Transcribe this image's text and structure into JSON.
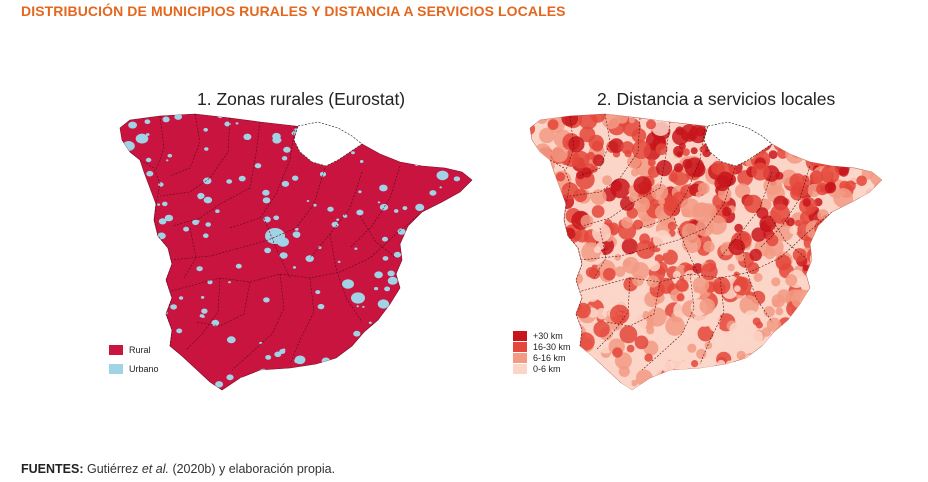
{
  "header": {
    "title": "DISTRIBUCIÓN DE MUNICIPIOS RURALES Y DISTANCIA A SERVICIOS LOCALES"
  },
  "maps": [
    {
      "title": "1. Zonas rurales (Eurostat)",
      "legend": [
        {
          "label": "Rural",
          "color": "#c8143f"
        },
        {
          "label": "Urbano",
          "color": "#9fd3e5"
        }
      ]
    },
    {
      "title": "2. Distancia a servicios locales",
      "legend": [
        {
          "label": "+30 km",
          "color": "#c8151b"
        },
        {
          "label": "16-30 km",
          "color": "#e4473b"
        },
        {
          "label": "6-16 km",
          "color": "#f29a84"
        },
        {
          "label": "0-6 km",
          "color": "#fbd6c8"
        }
      ]
    }
  ],
  "footer": {
    "label": "FUENTES:",
    "text_before": " Gutiérrez ",
    "text_italic": "et al.",
    "text_after": " (2020b) y elaboración propia."
  }
}
